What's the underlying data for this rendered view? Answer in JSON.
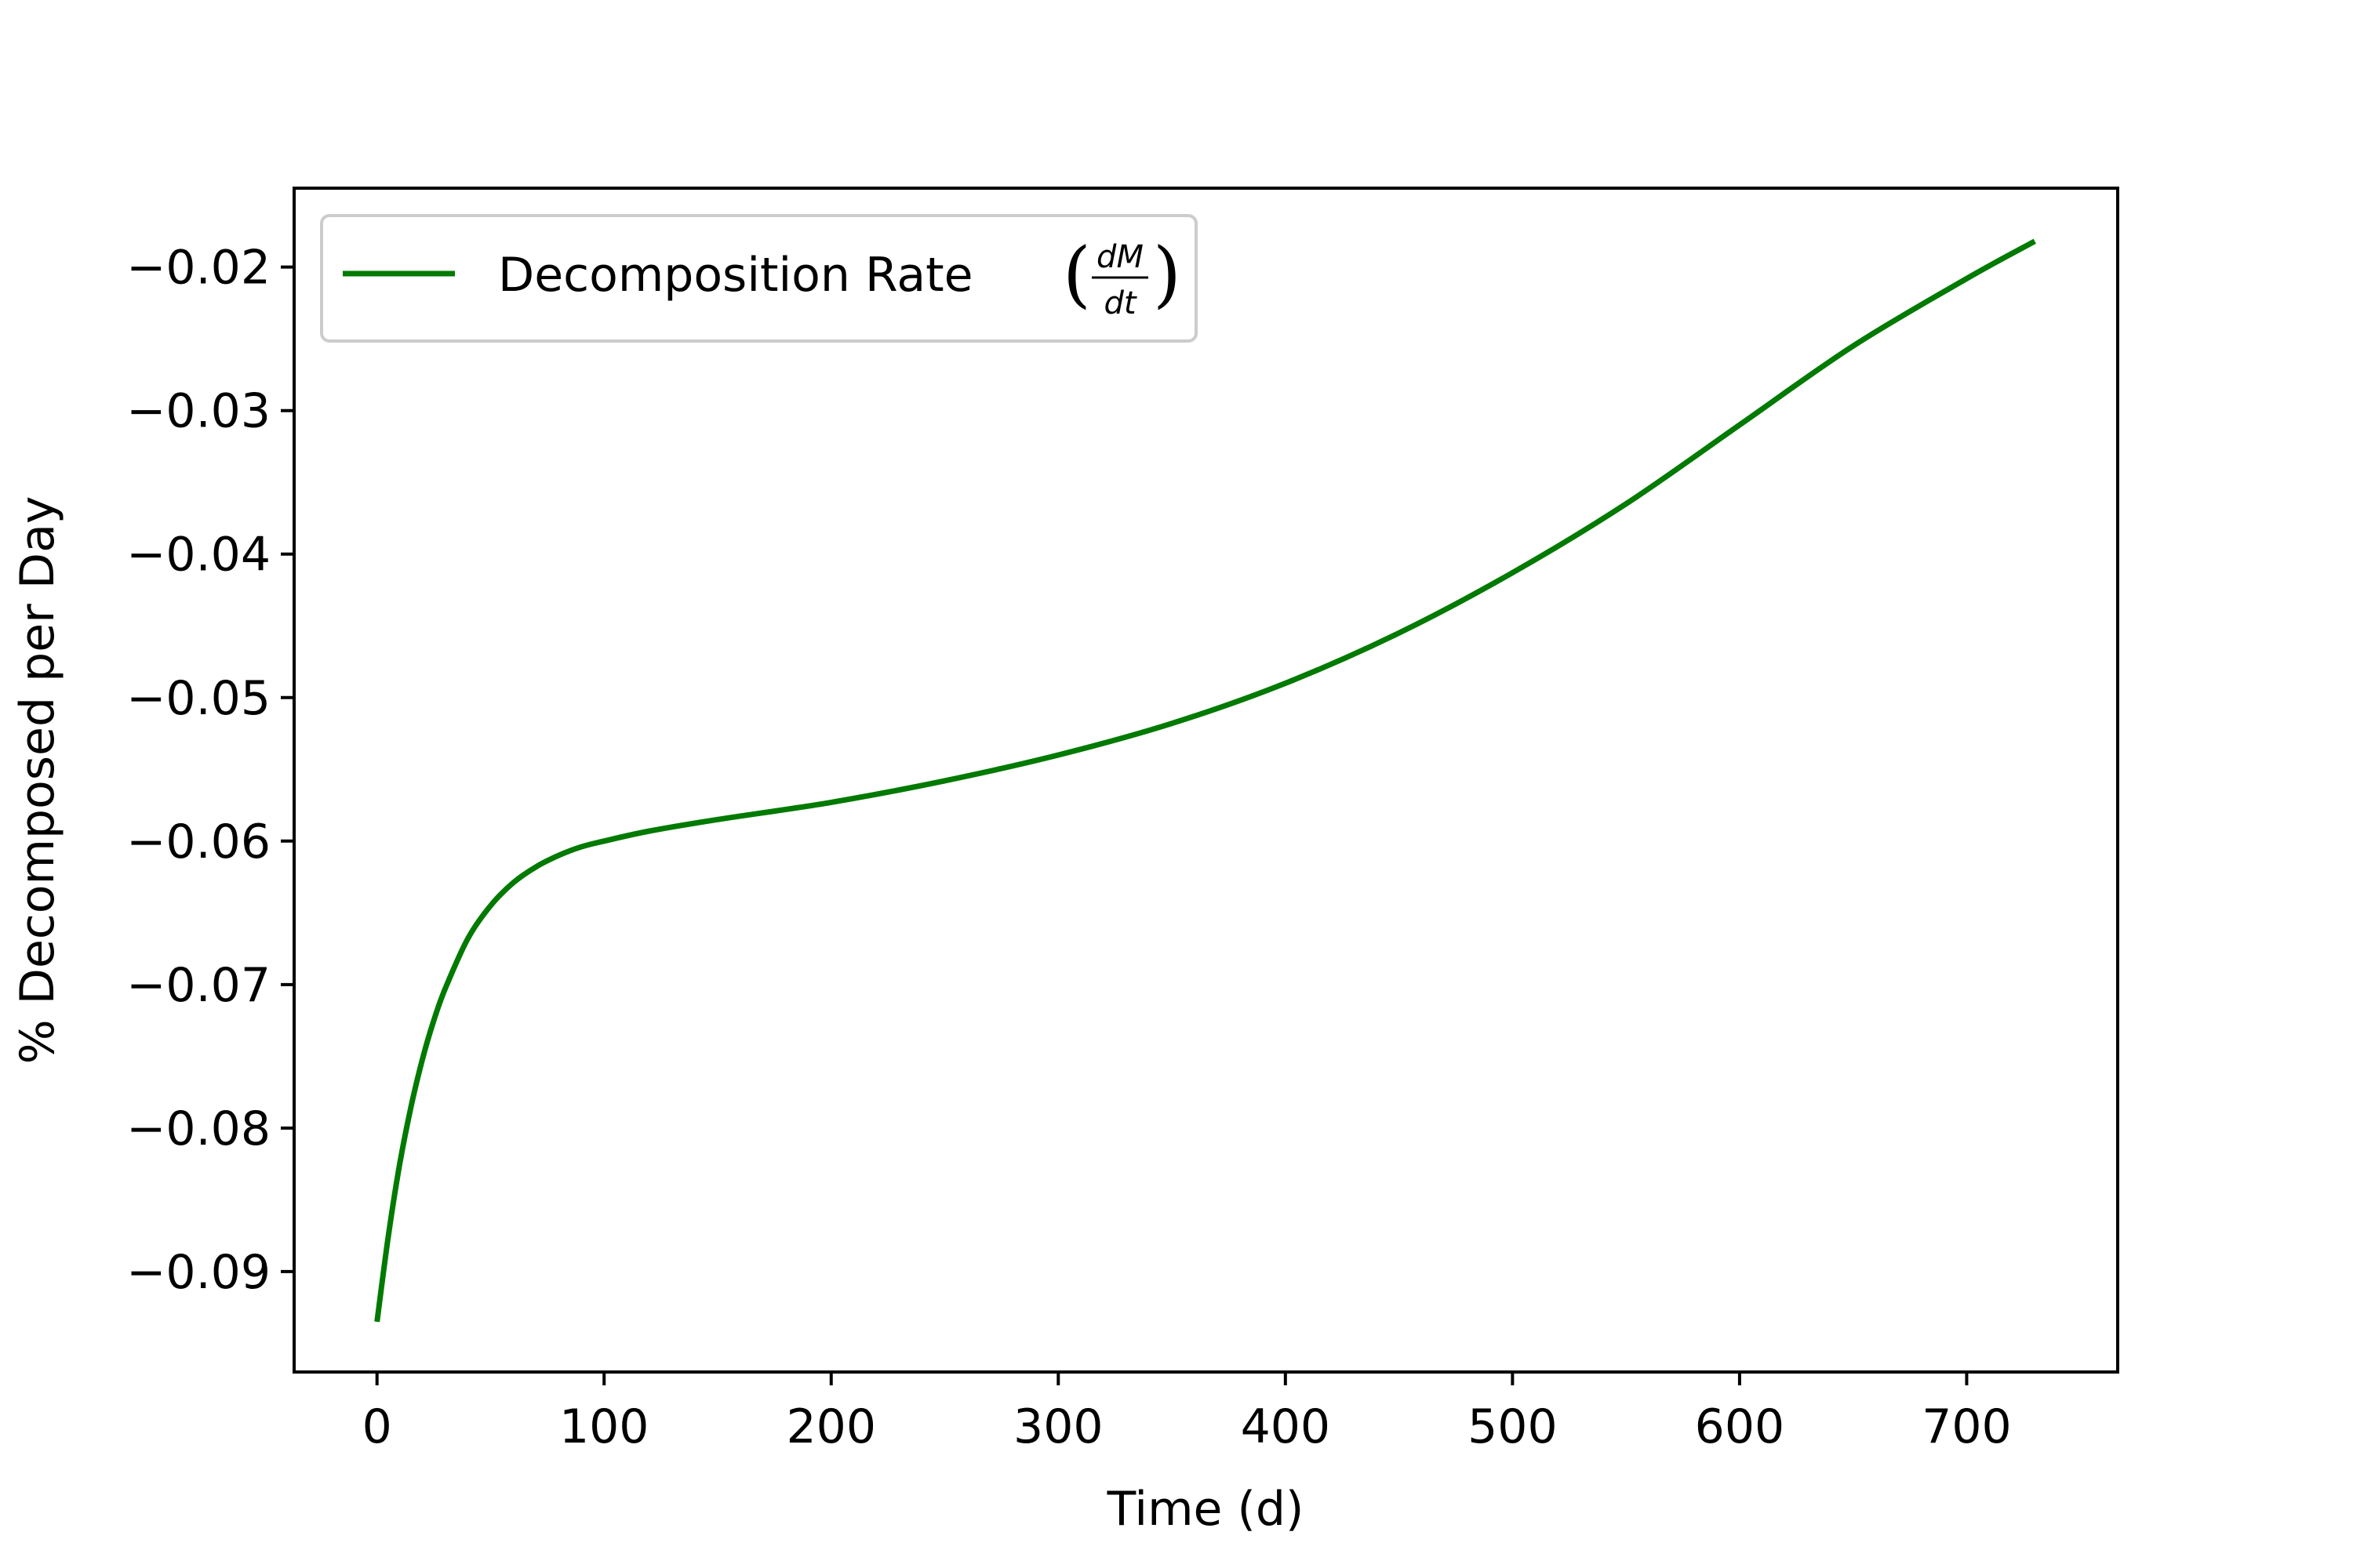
{
  "chart_data": {
    "type": "line",
    "xlabel": "Time (d)",
    "ylabel": "% Decomposed per Day",
    "xlim": [
      -36.5,
      766.5
    ],
    "ylim": [
      -0.097,
      -0.0145
    ],
    "x_ticks": [
      0,
      100,
      200,
      300,
      400,
      500,
      600,
      700
    ],
    "x_tick_labels": [
      "0",
      "100",
      "200",
      "300",
      "400",
      "500",
      "600",
      "700"
    ],
    "y_ticks": [
      -0.02,
      -0.03,
      -0.04,
      -0.05,
      -0.06,
      -0.07,
      -0.08,
      -0.09
    ],
    "y_tick_labels": [
      "−0.02",
      "−0.03",
      "−0.04",
      "−0.05",
      "−0.06",
      "−0.07",
      "−0.08",
      "−0.09"
    ],
    "grid": false,
    "legend_position": "top-left",
    "legend": {
      "label": "Decomposition Rate",
      "numerator": "dM",
      "denominator": "dt"
    },
    "series": [
      {
        "name": "Decomposition Rate (dM/dt)",
        "color": "#007a00",
        "x": [
          0,
          5,
          10,
          15,
          20,
          25,
          30,
          40,
          50,
          60,
          70,
          80,
          90,
          100,
          120,
          150,
          200,
          250,
          300,
          350,
          400,
          450,
          500,
          550,
          600,
          650,
          700,
          730
        ],
        "y": [
          -0.0935,
          -0.0875,
          -0.0825,
          -0.0785,
          -0.0752,
          -0.0725,
          -0.0703,
          -0.0668,
          -0.0645,
          -0.0629,
          -0.0618,
          -0.061,
          -0.0604,
          -0.06,
          -0.0593,
          -0.0585,
          -0.0573,
          -0.0558,
          -0.054,
          -0.0518,
          -0.049,
          -0.0455,
          -0.0413,
          -0.0365,
          -0.031,
          -0.0255,
          -0.0208,
          -0.0182
        ]
      }
    ]
  }
}
